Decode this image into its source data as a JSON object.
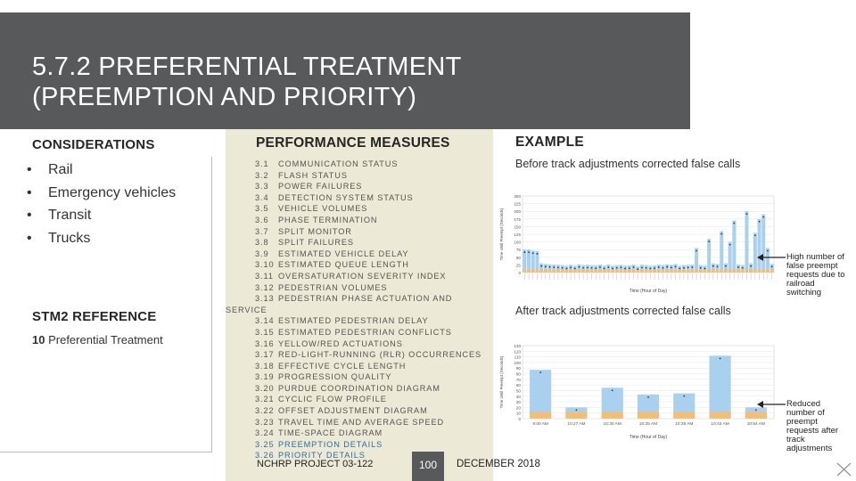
{
  "title": {
    "line1": "5.7.2 PREFERENTIAL TREATMENT",
    "line2": "(PREEMPTION AND PRIORITY)"
  },
  "considerations": {
    "heading": "CONSIDERATIONS",
    "items": [
      "Rail",
      "Emergency vehicles",
      "Transit",
      "Trucks"
    ]
  },
  "stm2": {
    "heading": "STM2 REFERENCE",
    "ref_number": "10",
    "ref_text": "Preferential Treatment"
  },
  "performance_measures": {
    "heading": "PERFORMANCE MEASURES",
    "items": [
      {
        "num": "3.1",
        "text": "COMMUNICATION STATUS"
      },
      {
        "num": "3.2",
        "text": "FLASH STATUS"
      },
      {
        "num": "3.3",
        "text": "POWER FAILURES"
      },
      {
        "num": "3.4",
        "text": "DETECTION SYSTEM STATUS"
      },
      {
        "num": "3.5",
        "text": "VEHICLE VOLUMES"
      },
      {
        "num": "3.6",
        "text": "PHASE TERMINATION"
      },
      {
        "num": "3.7",
        "text": "SPLIT MONITOR"
      },
      {
        "num": "3.8",
        "text": "SPLIT FAILURES"
      },
      {
        "num": "3.9",
        "text": "ESTIMATED VEHICLE DELAY"
      },
      {
        "num": "3.10",
        "text": "ESTIMATED QUEUE LENGTH"
      },
      {
        "num": "3.11",
        "text": "OVERSATURATION SEVERITY INDEX"
      },
      {
        "num": "3.12",
        "text": "PEDESTRIAN VOLUMES"
      },
      {
        "num": "3.13",
        "text": "PEDESTRIAN PHASE ACTUATION AND"
      },
      {
        "num": "",
        "text": "SERVICE"
      },
      {
        "num": "3.14",
        "text": "ESTIMATED PEDESTRIAN DELAY"
      },
      {
        "num": "3.15",
        "text": "ESTIMATED PEDESTRIAN CONFLICTS"
      },
      {
        "num": "3.16",
        "text": "YELLOW/RED ACTUATIONS"
      },
      {
        "num": "3.17",
        "text": "RED-LIGHT-RUNNING (RLR) OCCURRENCES"
      },
      {
        "num": "3.18",
        "text": "EFFECTIVE CYCLE LENGTH"
      },
      {
        "num": "3.19",
        "text": "PROGRESSION QUALITY"
      },
      {
        "num": "3.20",
        "text": "PURDUE COORDINATION DIAGRAM"
      },
      {
        "num": "3.21",
        "text": "CYCLIC FLOW PROFILE"
      },
      {
        "num": "3.22",
        "text": "OFFSET ADJUSTMENT DIAGRAM"
      },
      {
        "num": "3.23",
        "text": "TRAVEL TIME AND AVERAGE SPEED"
      },
      {
        "num": "3.24",
        "text": "TIME-SPACE DIAGRAM"
      },
      {
        "num": "3.25",
        "text": "PREEMPTION DETAILS"
      },
      {
        "num": "3.26",
        "text": "PRIORITY DETAILS"
      }
    ]
  },
  "example": {
    "heading": "EXAMPLE",
    "caption_top": "Before track adjustments corrected false calls",
    "caption_bottom": "After track adjustments corrected false calls",
    "note_top": "High number of false preempt requests due to railroad switching",
    "note_bottom": "Reduced number of preempt requests after track adjustments"
  },
  "footer": {
    "project": "NCHRP PROJECT 03-122",
    "page": "100",
    "date": "DECEMBER 2018"
  },
  "colors": {
    "title_bar": "#58595b",
    "mid_panel": "#ece9d6",
    "bar_blue": "#a9d0ef",
    "bar_orange": "#f4bf75",
    "highlight": "#2f6e9e"
  },
  "chart_data": [
    {
      "type": "bar",
      "name": "before",
      "xlabel": "Time (Hour of Day)",
      "ylabel": "Time Until Preempt (Seconds)",
      "ylim": [
        0,
        250
      ],
      "yticks": [
        0,
        25,
        50,
        75,
        100,
        125,
        150,
        175,
        200,
        225,
        250
      ],
      "legend": [
        "Cycle Down",
        "Input On",
        "Input Off",
        "Gate Down",
        "Dwell Time",
        "Track Clear",
        "Time to Service",
        "Delay"
      ],
      "values": [
        75,
        75,
        72,
        70,
        30,
        28,
        27,
        26,
        25,
        24,
        22,
        25,
        22,
        27,
        24,
        25,
        24,
        23,
        26,
        22,
        26,
        22,
        24,
        25,
        22,
        23,
        26,
        20,
        25,
        24,
        22,
        23,
        26,
        24,
        27,
        25,
        28,
        22,
        24,
        25,
        26,
        80,
        24,
        22,
        110,
        30,
        28,
        135,
        30,
        100,
        170,
        26,
        24,
        200,
        30,
        130,
        175,
        190,
        80,
        28
      ]
    },
    {
      "type": "bar",
      "name": "after",
      "xlabel": "Time (Hour of Day)",
      "ylabel": "Time Until Preempt (Seconds)",
      "ylim": [
        0,
        130
      ],
      "yticks": [
        0,
        10,
        20,
        30,
        40,
        50,
        60,
        70,
        80,
        90,
        100,
        110,
        120,
        130
      ],
      "legend": [
        "Cycle Down",
        "Input On",
        "Input Off",
        "Gate Down",
        "Dwell Time",
        "Track Clear",
        "Time to Service",
        "Delay"
      ],
      "categories": [
        "9:00 AM",
        "10:27 AM",
        "10:30 AM",
        "10:35 AM",
        "10:38 AM",
        "10:43 AM",
        "10:54 AM"
      ],
      "values": [
        87,
        20,
        55,
        43,
        45,
        112,
        20
      ]
    }
  ]
}
